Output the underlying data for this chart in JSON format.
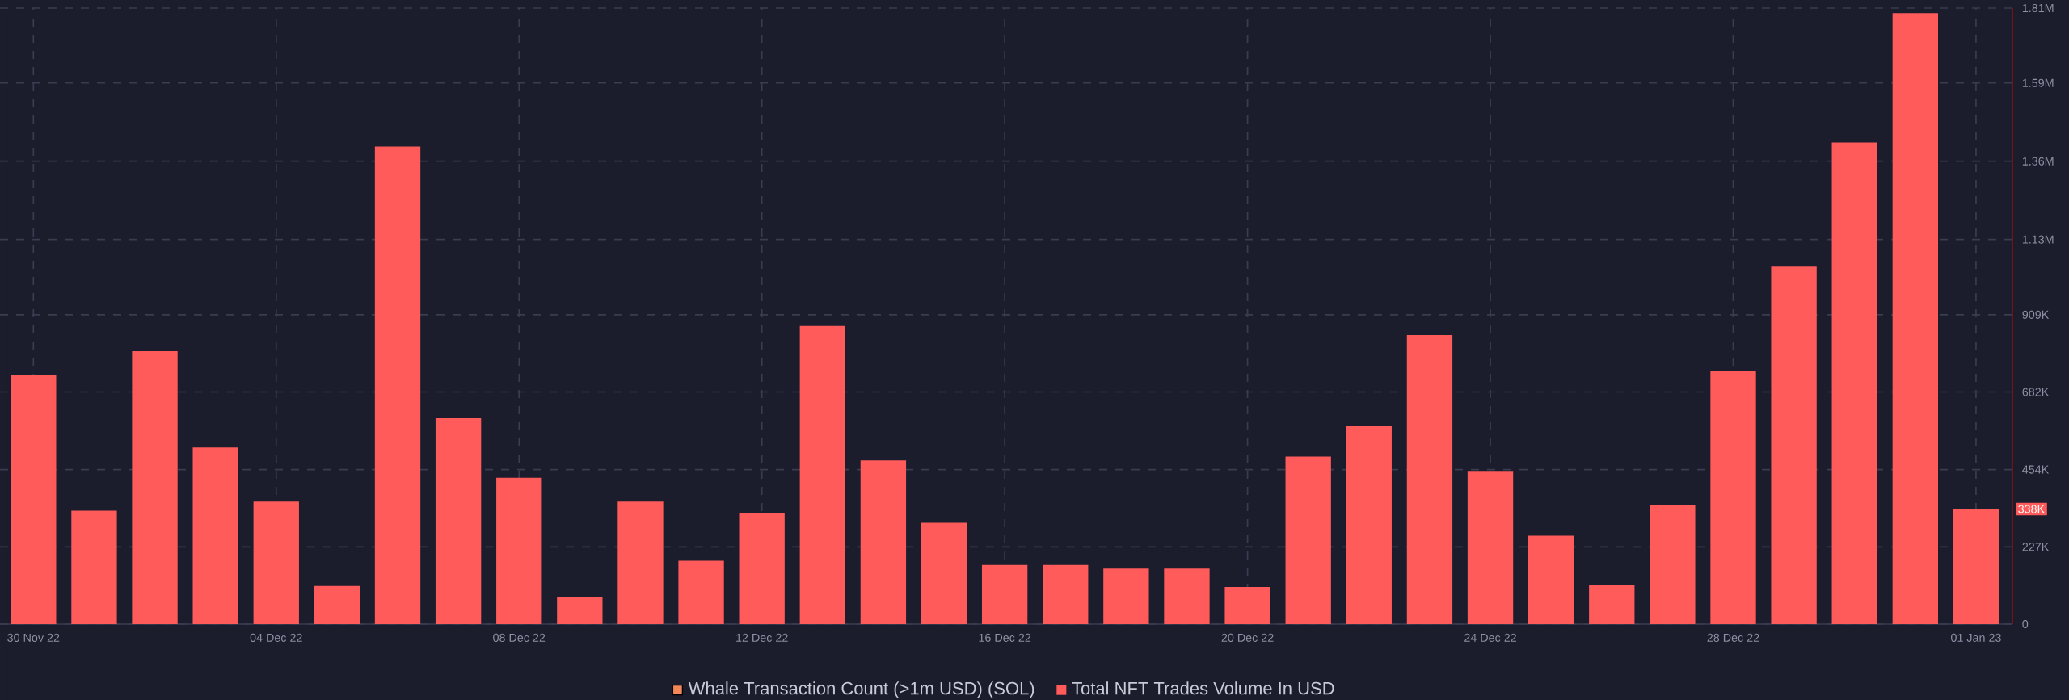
{
  "chart_data": {
    "type": "bar",
    "categories": [
      "30 Nov 22",
      null,
      null,
      null,
      "04 Dec 22",
      null,
      null,
      null,
      "08 Dec 22",
      null,
      null,
      null,
      "12 Dec 22",
      null,
      null,
      null,
      "16 Dec 22",
      null,
      null,
      null,
      "20 Dec 22",
      null,
      null,
      null,
      "24 Dec 22",
      null,
      null,
      null,
      "28 Dec 22",
      null,
      null,
      null,
      "01 Jan 23"
    ],
    "series": [
      {
        "name": "Whale Transaction Count (>1m USD) (SOL)",
        "color": "#f3875a",
        "values": [
          null,
          null,
          null,
          null,
          null,
          null,
          null,
          null,
          null,
          null,
          null,
          null,
          null,
          null,
          null,
          null,
          null,
          null,
          null,
          null,
          null,
          null,
          null,
          null,
          null,
          null,
          null,
          null,
          null,
          null,
          null,
          null,
          null
        ]
      },
      {
        "name": "Total NFT Trades Volume In USD",
        "color": "#ff5b5b",
        "values": [
          732000,
          333000,
          802000,
          519000,
          360000,
          112000,
          1403000,
          605000,
          430000,
          78000,
          360000,
          186000,
          326000,
          876000,
          481000,
          298000,
          174000,
          174000,
          163000,
          163000,
          109000,
          492000,
          581000,
          849000,
          450000,
          260000,
          116000,
          349000,
          744000,
          1050000,
          1415000,
          1795000,
          338000
        ]
      }
    ],
    "ylim": [
      0,
      1810000
    ],
    "yticks": [
      0,
      {
        "value": 227000,
        "label": "227K"
      },
      {
        "value": 454000,
        "label": "454K"
      },
      {
        "value": 682000,
        "label": "682K"
      },
      {
        "value": 909000,
        "label": "909K"
      },
      {
        "value": 1130000,
        "label": "1.13M"
      },
      {
        "value": 1360000,
        "label": "1.36M"
      },
      {
        "value": 1590000,
        "label": "1.59M"
      },
      {
        "value": 1810000,
        "label": "1.81M"
      }
    ],
    "annotations": [
      "338K"
    ],
    "grid": true,
    "legend": "bottom"
  }
}
